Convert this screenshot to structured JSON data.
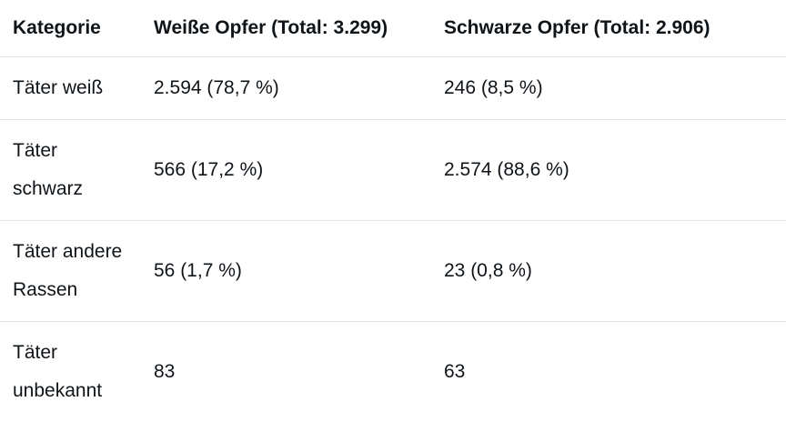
{
  "table": {
    "headers": [
      "Kategorie",
      "Weiße Opfer (Total: 3.299)",
      "Schwarze Opfer (Total: 2.906)"
    ],
    "rows": [
      [
        "Täter weiß",
        "2.594 (78,7 %)",
        "246 (8,5 %)"
      ],
      [
        "Täter schwarz",
        "566 (17,2 %)",
        "2.574 (88,6 %)"
      ],
      [
        "Täter andere Rassen",
        "56 (1,7 %)",
        "23 (0,8 %)"
      ],
      [
        "Täter unbekannt",
        "83",
        "63"
      ]
    ]
  }
}
